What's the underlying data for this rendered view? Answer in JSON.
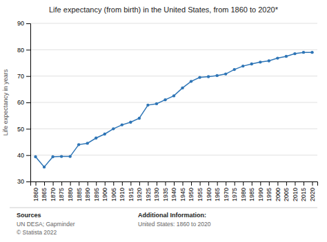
{
  "chart_data": {
    "type": "line",
    "title": "Life expectancy (from birth) in the United States, from 1860 to 2020*",
    "ylabel": "Life expectancy in years",
    "annotations": [
      "Sources",
      "UN DESA; Gapminder",
      "© Statista 2022",
      "Additional Information:",
      "United States: 1860 to 2020"
    ],
    "x": [
      1860,
      1865,
      1870,
      1875,
      1880,
      1885,
      1890,
      1895,
      1900,
      1905,
      1910,
      1915,
      1920,
      1925,
      1930,
      1935,
      1940,
      1945,
      1950,
      1955,
      1960,
      1965,
      1970,
      1975,
      1980,
      1985,
      1990,
      1995,
      2000,
      2005,
      2010,
      2015,
      2020
    ],
    "values": [
      39.4,
      35.5,
      39.4,
      39.5,
      39.5,
      44.0,
      44.5,
      46.5,
      48.0,
      50.0,
      51.5,
      52.5,
      54.0,
      59.0,
      59.5,
      61.0,
      62.5,
      65.5,
      68.0,
      69.5,
      69.8,
      70.2,
      70.8,
      72.5,
      73.8,
      74.6,
      75.3,
      75.8,
      76.8,
      77.5,
      78.5,
      79.0,
      79.0
    ],
    "color": "#2e75b6",
    "marker": "circle",
    "xlim": [
      1857,
      2023
    ],
    "xticks": [
      1860,
      1865,
      1870,
      1875,
      1880,
      1885,
      1890,
      1895,
      1900,
      1905,
      1910,
      1915,
      1920,
      1925,
      1930,
      1935,
      1940,
      1945,
      1950,
      1955,
      1960,
      1965,
      1970,
      1975,
      1980,
      1985,
      1990,
      1995,
      2000,
      2005,
      2010,
      2015,
      2020
    ],
    "ylim": [
      30,
      90
    ],
    "yticks": [
      30,
      40,
      50,
      60,
      70,
      80,
      90
    ],
    "grid": "y"
  }
}
